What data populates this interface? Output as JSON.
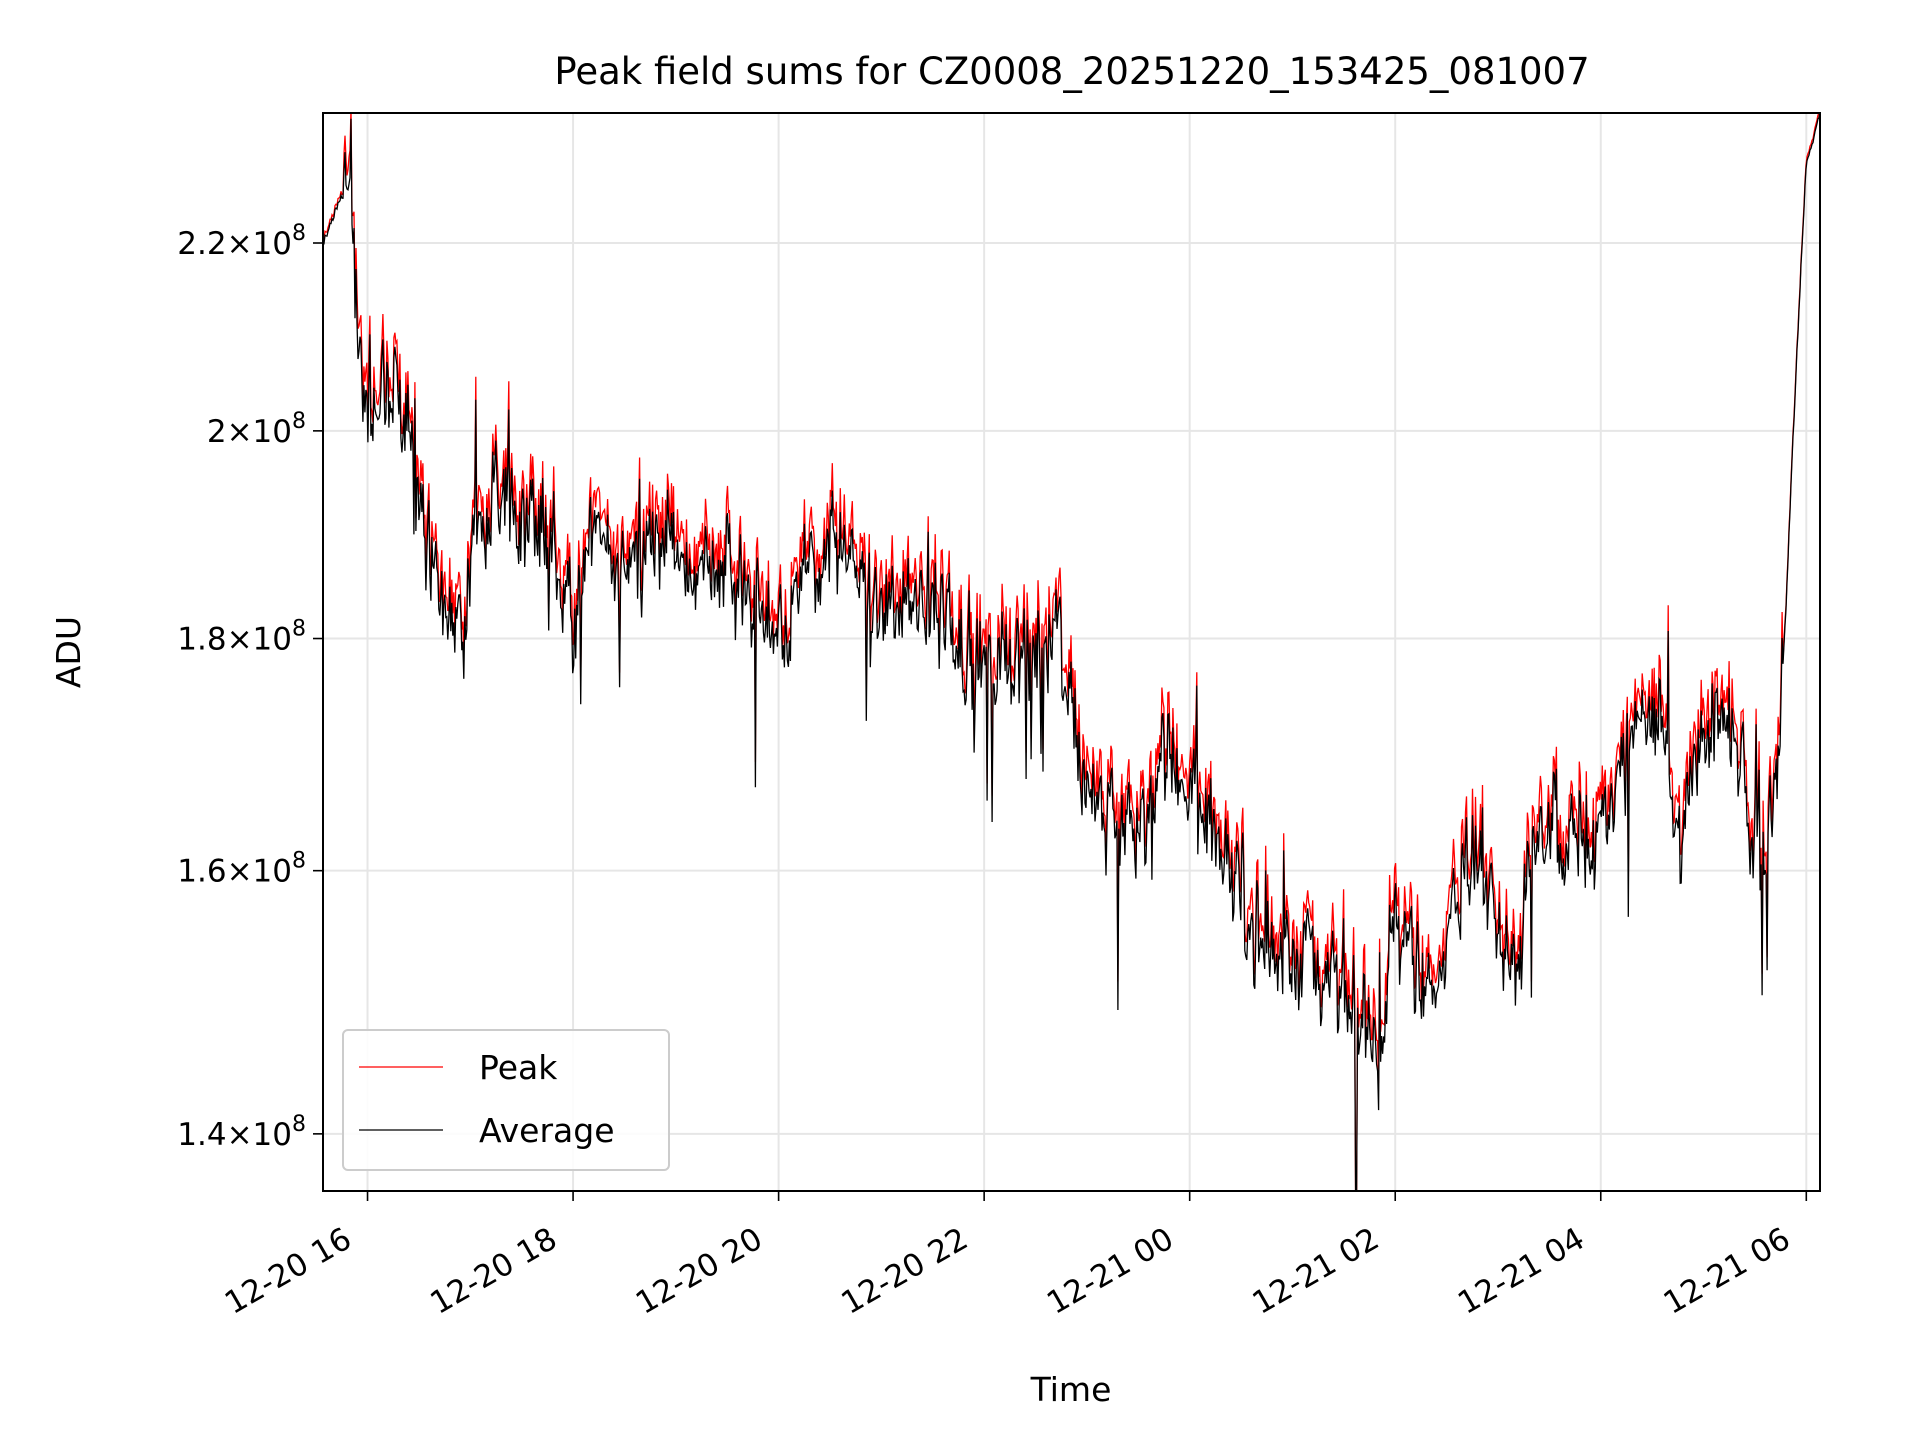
{
  "chart_data": {
    "type": "line",
    "title": "Peak field sums for CZ0008_20251220_153425_081007",
    "xlabel": "Time",
    "ylabel": "ADU",
    "yscale": "log",
    "xlim": [
      "2025-12-20 15:34",
      "2025-12-21 06:08"
    ],
    "ylim": [
      136000000,
      235000000
    ],
    "grid": true,
    "legend_position": "lower-left",
    "x_ticks": [
      {
        "value": "2025-12-20 16:00",
        "label": "12-20 16"
      },
      {
        "value": "2025-12-20 18:00",
        "label": "12-20 18"
      },
      {
        "value": "2025-12-20 20:00",
        "label": "12-20 20"
      },
      {
        "value": "2025-12-20 22:00",
        "label": "12-20 22"
      },
      {
        "value": "2025-12-21 00:00",
        "label": "12-21 00"
      },
      {
        "value": "2025-12-21 02:00",
        "label": "12-21 02"
      },
      {
        "value": "2025-12-21 04:00",
        "label": "12-21 04"
      },
      {
        "value": "2025-12-21 06:00",
        "label": "12-21 06"
      }
    ],
    "y_ticks": [
      {
        "value": 140000000,
        "mantissa": "1.4",
        "base": "10",
        "exp": "8"
      },
      {
        "value": 160000000,
        "mantissa": "1.6",
        "base": "10",
        "exp": "8"
      },
      {
        "value": 180000000,
        "mantissa": "1.8",
        "base": "10",
        "exp": "8"
      },
      {
        "value": 200000000,
        "mantissa": "2",
        "base": "10",
        "exp": "8"
      },
      {
        "value": 220000000,
        "mantissa": "2.2",
        "base": "10",
        "exp": "8"
      }
    ],
    "series": [
      {
        "name": "Peak",
        "color": "#ff0000"
      },
      {
        "name": "Average",
        "color": "#000000"
      }
    ],
    "trend": {
      "x": [
        "2025-12-20 15:34",
        "2025-12-20 15:44",
        "2025-12-20 15:50",
        "2025-12-20 15:54",
        "2025-12-20 16:00",
        "2025-12-20 16:10",
        "2025-12-20 16:25",
        "2025-12-20 16:35",
        "2025-12-20 16:45",
        "2025-12-20 16:55",
        "2025-12-20 17:05",
        "2025-12-20 17:15",
        "2025-12-20 17:30",
        "2025-12-20 17:45",
        "2025-12-20 18:00",
        "2025-12-20 18:10",
        "2025-12-20 18:30",
        "2025-12-20 19:00",
        "2025-12-20 19:30",
        "2025-12-20 20:00",
        "2025-12-20 20:30",
        "2025-12-20 21:00",
        "2025-12-20 21:30",
        "2025-12-20 22:00",
        "2025-12-20 22:30",
        "2025-12-20 22:45",
        "2025-12-20 23:00",
        "2025-12-20 23:30",
        "2025-12-20 23:50",
        "2025-12-21 00:10",
        "2025-12-21 00:30",
        "2025-12-21 00:50",
        "2025-12-21 01:00",
        "2025-12-21 01:20",
        "2025-12-21 01:35",
        "2025-12-21 01:50",
        "2025-12-21 02:00",
        "2025-12-21 02:20",
        "2025-12-21 02:40",
        "2025-12-21 02:55",
        "2025-12-21 03:10",
        "2025-12-21 03:25",
        "2025-12-21 03:40",
        "2025-12-21 04:00",
        "2025-12-21 04:20",
        "2025-12-21 04:35",
        "2025-12-21 04:45",
        "2025-12-21 04:55",
        "2025-12-21 05:05",
        "2025-12-21 05:20",
        "2025-12-21 05:35",
        "2025-12-21 05:43",
        "2025-12-21 05:48",
        "2025-12-21 05:54",
        "2025-12-21 06:00",
        "2025-12-21 06:08"
      ],
      "y": [
        220000000,
        225000000,
        225000000,
        210000000,
        201000000,
        204000000,
        203000000,
        190000000,
        183000000,
        178000000,
        192000000,
        194000000,
        192000000,
        191000000,
        182000000,
        190000000,
        187000000,
        189000000,
        187000000,
        181000000,
        189000000,
        182000000,
        184000000,
        177000000,
        179000000,
        180000000,
        165000000,
        164000000,
        170000000,
        164000000,
        158000000,
        153000000,
        154000000,
        152000000,
        149000000,
        147000000,
        157000000,
        150000000,
        161000000,
        159000000,
        152000000,
        166000000,
        163000000,
        163000000,
        172000000,
        174000000,
        159000000,
        169000000,
        172000000,
        171000000,
        160000000,
        169000000,
        182000000,
        206000000,
        229000000,
        235000000
      ]
    }
  }
}
